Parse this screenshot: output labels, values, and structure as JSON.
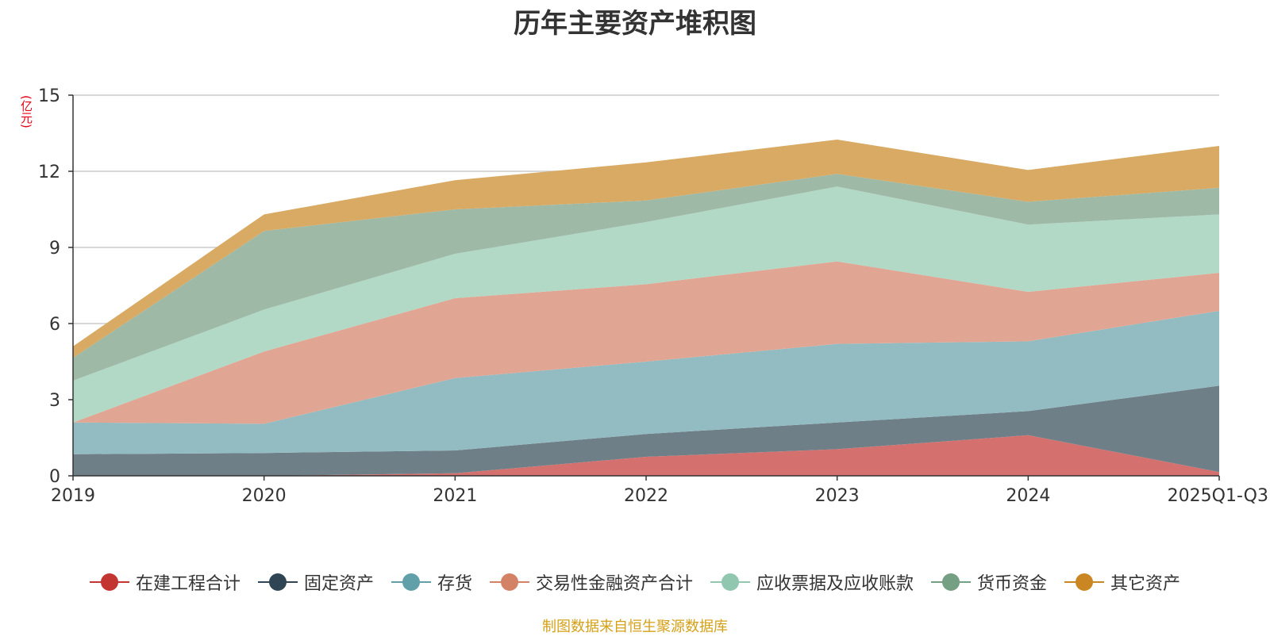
{
  "title": "历年主要资产堆积图",
  "source": "制图数据来自恒生聚源数据库",
  "chart_data": {
    "type": "area",
    "stacked": true,
    "title": "历年主要资产堆积图",
    "ylabel": "(亿元)",
    "xlabel": "",
    "categories": [
      "2019",
      "2020",
      "2021",
      "2022",
      "2023",
      "2024",
      "2025Q1-Q3"
    ],
    "ylim": [
      0,
      15
    ],
    "yticks": [
      0,
      3,
      6,
      9,
      12,
      15
    ],
    "series": [
      {
        "name": "在建工程合计",
        "color": "#c23531",
        "fill": "#d4716f",
        "values": [
          0,
          0,
          0.1,
          0.75,
          1.05,
          1.6,
          0.15
        ]
      },
      {
        "name": "固定资产",
        "color": "#2f4554",
        "fill": "#6e7f88",
        "values": [
          0.85,
          0.9,
          0.9,
          0.9,
          1.05,
          0.95,
          3.4
        ]
      },
      {
        "name": "存货",
        "color": "#61a0a8",
        "fill": "#93bcc2",
        "values": [
          1.25,
          1.15,
          2.85,
          2.85,
          3.1,
          2.75,
          2.95
        ]
      },
      {
        "name": "交易性金融资产合计",
        "color": "#d48265",
        "fill": "#e1a693",
        "values": [
          0,
          2.85,
          3.15,
          3.05,
          3.25,
          1.95,
          1.5
        ]
      },
      {
        "name": "应收票据及应收账款",
        "color": "#91c7ae",
        "fill": "#b2d8c6",
        "values": [
          1.65,
          1.65,
          1.75,
          2.45,
          2.95,
          2.65,
          2.3
        ]
      },
      {
        "name": "货币资金",
        "color": "#749f83",
        "fill": "#9fb9a7",
        "values": [
          0.9,
          3.1,
          1.75,
          0.85,
          0.5,
          0.9,
          1.05
        ]
      },
      {
        "name": "其它资产",
        "color": "#ca8622",
        "fill": "#d8aa63",
        "values": [
          0.45,
          0.65,
          1.15,
          1.5,
          1.35,
          1.25,
          1.65
        ]
      }
    ]
  }
}
